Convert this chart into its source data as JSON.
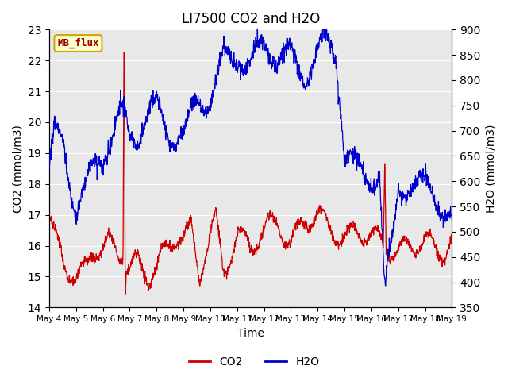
{
  "title": "LI7500 CO2 and H2O",
  "xlabel": "Time",
  "ylabel_left": "CO2 (mmol/m3)",
  "ylabel_right": "H2O (mmol/m3)",
  "ylim_left": [
    14.0,
    23.0
  ],
  "ylim_right": [
    350,
    900
  ],
  "annotation_text": "MB_flux",
  "annotation_bg": "#FFFFCC",
  "annotation_border": "#CCAA00",
  "annotation_text_color": "#990000",
  "co2_color": "#CC0000",
  "h2o_color": "#0000CC",
  "plot_bg": "#E8E8E8",
  "tick_labels": [
    "May 4",
    "May 5",
    "May 6",
    "May 7",
    "May 8",
    "May 9",
    "May 10",
    "May 11",
    "May 12",
    "May 13",
    "May 14",
    "May 15",
    "May 16",
    "May 17",
    "May 18",
    "May 19"
  ],
  "n_days": 15,
  "seed": 43
}
